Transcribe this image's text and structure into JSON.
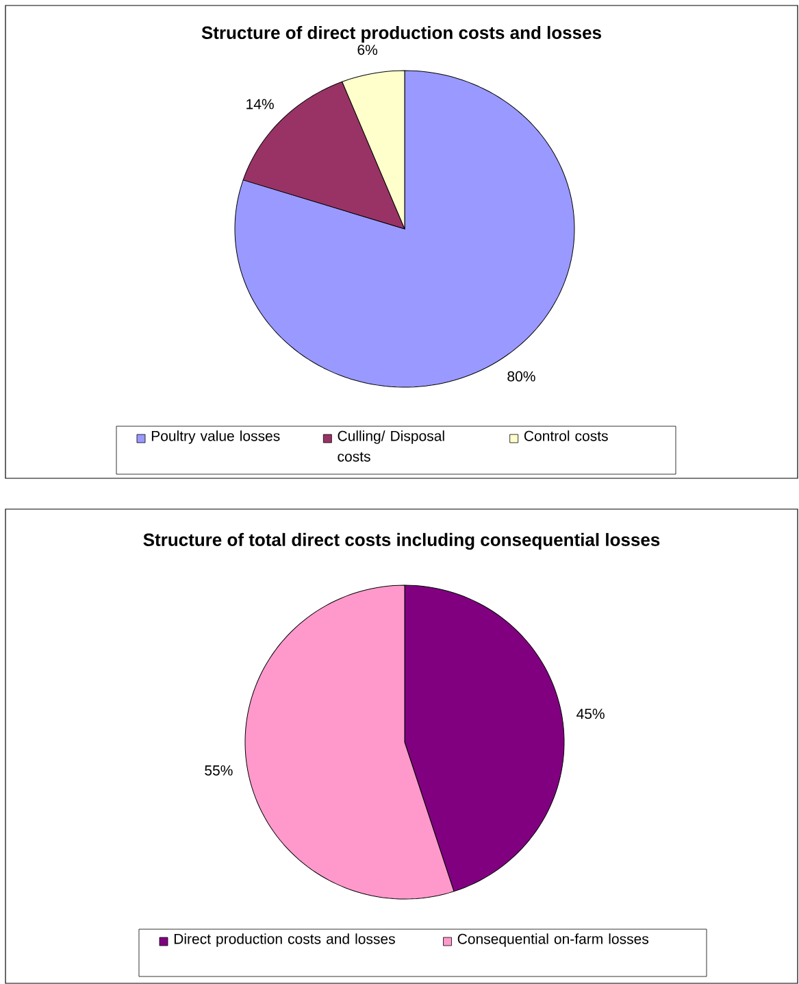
{
  "chart_data": [
    {
      "type": "pie",
      "title": "Structure of direct production costs and losses",
      "categories": [
        "Poultry value losses",
        "Culling/ Disposal costs",
        "Control costs"
      ],
      "values": [
        80,
        14,
        6
      ],
      "colors": [
        "#9999ff",
        "#993366",
        "#ffffcc"
      ],
      "value_labels": [
        "80%",
        "14%",
        "6%"
      ],
      "legend": "bottom"
    },
    {
      "type": "pie",
      "title": "Structure of total direct costs including consequential losses",
      "categories": [
        "Direct production costs and losses",
        "Consequential on-farm losses"
      ],
      "values": [
        45,
        55
      ],
      "colors": [
        "#800080",
        "#ff99cc"
      ],
      "value_labels": [
        "45%",
        "55%"
      ],
      "legend": "bottom"
    }
  ]
}
